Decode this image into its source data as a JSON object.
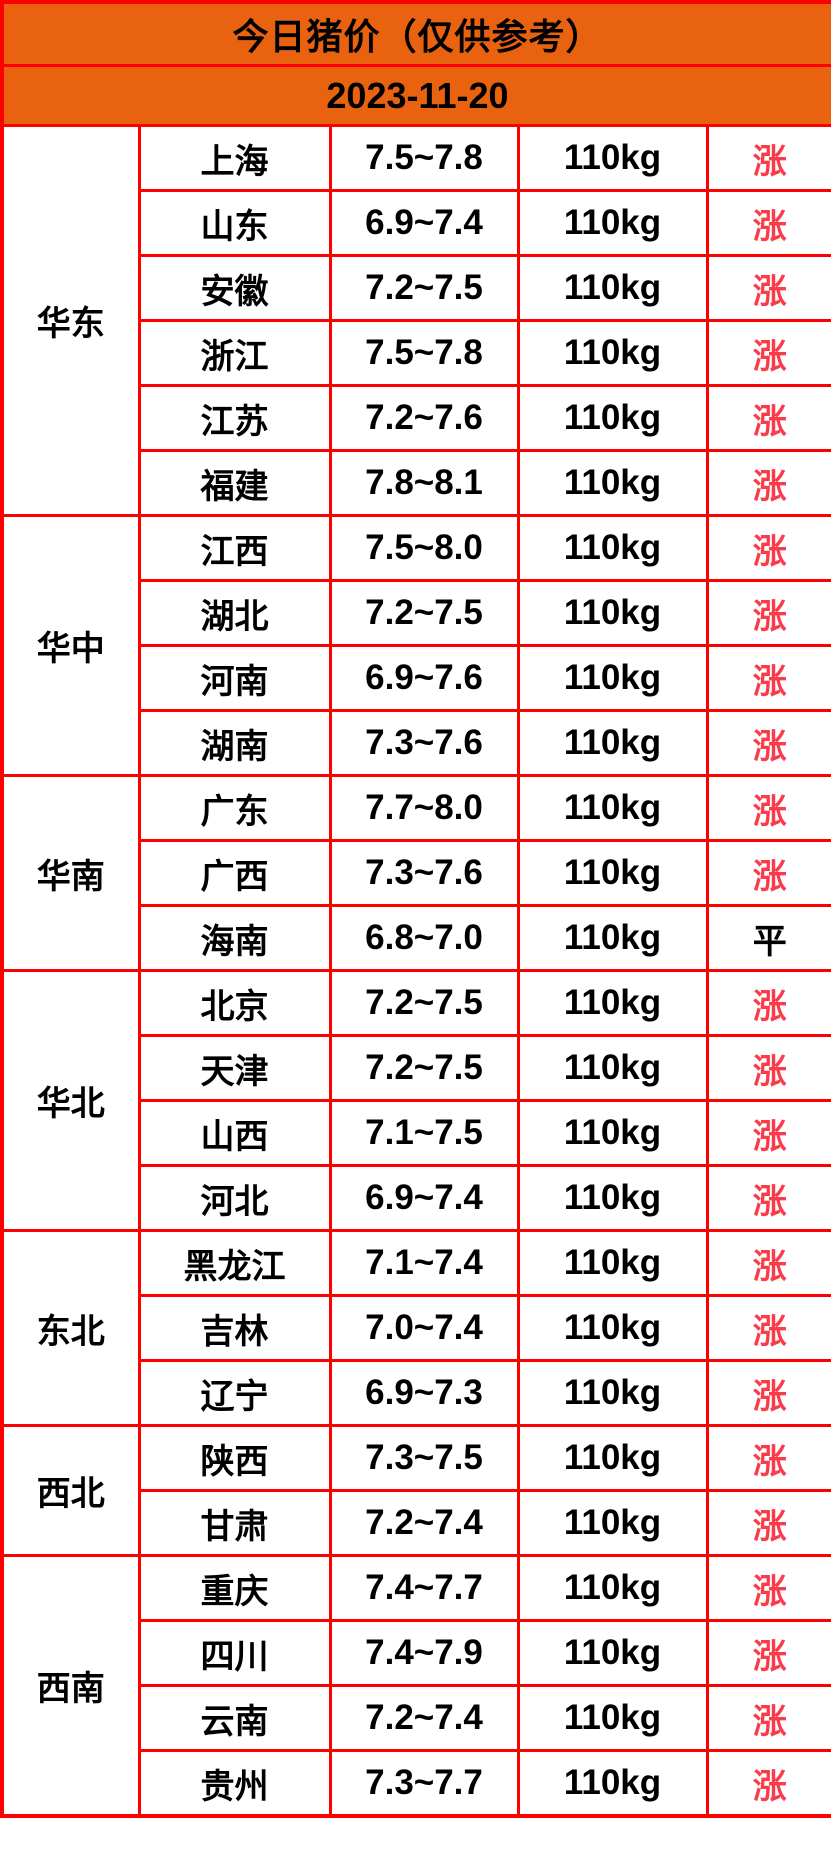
{
  "header": {
    "title": "今日猪价（仅供参考）",
    "date": "2023-11-20"
  },
  "colors": {
    "orange_bg": "#e8620f",
    "border_red": "#ff0000",
    "rise_red": "#fa3b4a",
    "text_black": "#000000"
  },
  "status_colors": {
    "涨": "#fa3b4a",
    "平": "#000000"
  },
  "table": {
    "columns": [
      "region",
      "province",
      "price_range",
      "weight",
      "status"
    ],
    "regions": [
      {
        "name": "华东",
        "provinces": [
          {
            "province": "上海",
            "price": "7.5~7.8",
            "weight": "110kg",
            "status": "涨"
          },
          {
            "province": "山东",
            "price": "6.9~7.4",
            "weight": "110kg",
            "status": "涨"
          },
          {
            "province": "安徽",
            "price": "7.2~7.5",
            "weight": "110kg",
            "status": "涨"
          },
          {
            "province": "浙江",
            "price": "7.5~7.8",
            "weight": "110kg",
            "status": "涨"
          },
          {
            "province": "江苏",
            "price": "7.2~7.6",
            "weight": "110kg",
            "status": "涨"
          },
          {
            "province": "福建",
            "price": "7.8~8.1",
            "weight": "110kg",
            "status": "涨"
          }
        ]
      },
      {
        "name": "华中",
        "provinces": [
          {
            "province": "江西",
            "price": "7.5~8.0",
            "weight": "110kg",
            "status": "涨"
          },
          {
            "province": "湖北",
            "price": "7.2~7.5",
            "weight": "110kg",
            "status": "涨"
          },
          {
            "province": "河南",
            "price": "6.9~7.6",
            "weight": "110kg",
            "status": "涨"
          },
          {
            "province": "湖南",
            "price": "7.3~7.6",
            "weight": "110kg",
            "status": "涨"
          }
        ]
      },
      {
        "name": "华南",
        "provinces": [
          {
            "province": "广东",
            "price": "7.7~8.0",
            "weight": "110kg",
            "status": "涨"
          },
          {
            "province": "广西",
            "price": "7.3~7.6",
            "weight": "110kg",
            "status": "涨"
          },
          {
            "province": "海南",
            "price": "6.8~7.0",
            "weight": "110kg",
            "status": "平"
          }
        ]
      },
      {
        "name": "华北",
        "provinces": [
          {
            "province": "北京",
            "price": "7.2~7.5",
            "weight": "110kg",
            "status": "涨"
          },
          {
            "province": "天津",
            "price": "7.2~7.5",
            "weight": "110kg",
            "status": "涨"
          },
          {
            "province": "山西",
            "price": "7.1~7.5",
            "weight": "110kg",
            "status": "涨"
          },
          {
            "province": "河北",
            "price": "6.9~7.4",
            "weight": "110kg",
            "status": "涨"
          }
        ]
      },
      {
        "name": "东北",
        "provinces": [
          {
            "province": "黑龙江",
            "price": "7.1~7.4",
            "weight": "110kg",
            "status": "涨"
          },
          {
            "province": "吉林",
            "price": "7.0~7.4",
            "weight": "110kg",
            "status": "涨"
          },
          {
            "province": "辽宁",
            "price": "6.9~7.3",
            "weight": "110kg",
            "status": "涨"
          }
        ]
      },
      {
        "name": "西北",
        "provinces": [
          {
            "province": "陕西",
            "price": "7.3~7.5",
            "weight": "110kg",
            "status": "涨"
          },
          {
            "province": "甘肃",
            "price": "7.2~7.4",
            "weight": "110kg",
            "status": "涨"
          }
        ]
      },
      {
        "name": "西南",
        "provinces": [
          {
            "province": "重庆",
            "price": "7.4~7.7",
            "weight": "110kg",
            "status": "涨"
          },
          {
            "province": "四川",
            "price": "7.4~7.9",
            "weight": "110kg",
            "status": "涨"
          },
          {
            "province": "云南",
            "price": "7.2~7.4",
            "weight": "110kg",
            "status": "涨"
          },
          {
            "province": "贵州",
            "price": "7.3~7.7",
            "weight": "110kg",
            "status": "涨"
          }
        ]
      }
    ]
  }
}
